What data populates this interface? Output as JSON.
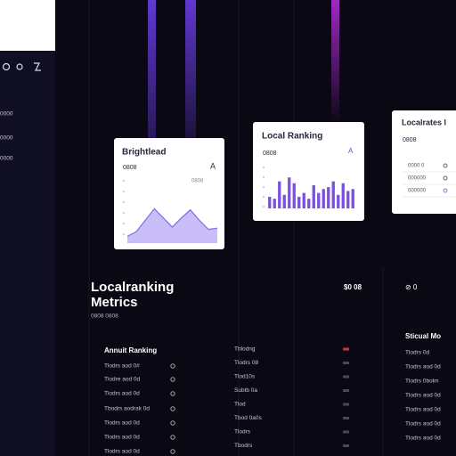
{
  "sidebar": {
    "items": [
      "0000",
      "0000",
      "0000"
    ]
  },
  "cards": [
    {
      "title": "Brightlead",
      "value": "0808",
      "badge": "A",
      "note": "0808",
      "chart": {
        "type": "area",
        "values": [
          6,
          10,
          20,
          30,
          22,
          14,
          22,
          29,
          20,
          12,
          13
        ],
        "ylim": [
          0,
          35
        ],
        "color": "#8a6ff0"
      }
    },
    {
      "title": "Local Ranking",
      "value": "0808",
      "badge": "A",
      "chart": {
        "type": "bar",
        "values": [
          12,
          10,
          28,
          14,
          32,
          26,
          12,
          16,
          10,
          24,
          16,
          20,
          22,
          28,
          14,
          26,
          18,
          20
        ],
        "ylim": [
          0,
          35
        ],
        "color": "#7b4fe0"
      }
    },
    {
      "title": "Localrates l",
      "value": "0808",
      "rows": [
        "0000 0",
        "000000",
        "000000"
      ]
    }
  ],
  "metrics": {
    "title": [
      "Localranking",
      "Metrics"
    ],
    "subtitle": "0808 0808",
    "amount": "$0 08",
    "status": "⊘ 0"
  },
  "left_list": {
    "heading": "Annuit Ranking",
    "rows": [
      "Tlodrs aod 0#",
      "Tlodre aod 0d",
      "Tlodrs aod 0d",
      "Tbodrs aodrak 0d",
      "Tlodrs aod 0d",
      "Tlodrs aod 0d",
      "Tlodrs aod 0d"
    ]
  },
  "middle_list": {
    "rows": [
      "Tblodng",
      "Tlodrs 08",
      "Tlod10s",
      "Subtb 0a",
      "Tlod",
      "Tbod 0a0s",
      "Tlodrs",
      "Tbodrs"
    ]
  },
  "right_list": {
    "heading": "Sticual Mo",
    "rows": [
      "Tlodrs 0d",
      "Tlodrs aod 0d",
      "Tlodrs 0bolm",
      "Tlodrs aod 0d",
      "Tlodrs aod 0d",
      "Tlodrs aod 0d",
      "Tlodrs aod 0d"
    ]
  }
}
